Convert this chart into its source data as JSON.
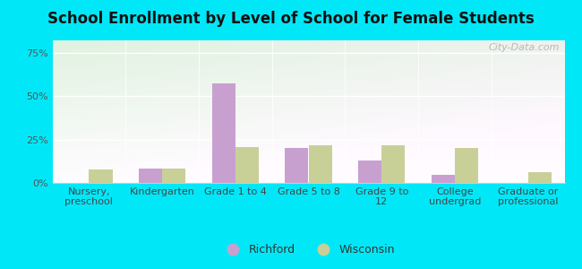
{
  "title": "School Enrollment by Level of School for Female Students",
  "categories": [
    "Nursery,\npreschool",
    "Kindergarten",
    "Grade 1 to 4",
    "Grade 5 to 8",
    "Grade 9 to\n12",
    "College\nundergrad",
    "Graduate or\nprofessional"
  ],
  "richford": [
    0.0,
    8.5,
    57.0,
    20.0,
    13.0,
    4.5,
    0.0
  ],
  "wisconsin": [
    7.5,
    8.0,
    20.5,
    21.5,
    21.5,
    20.0,
    6.0
  ],
  "richford_color": "#c8a0d0",
  "wisconsin_color": "#c8d098",
  "outer_bg": "#00e8f8",
  "plot_bg_colors": [
    "#ddeedd",
    "#f5fff8"
  ],
  "watermark": "City-Data.com",
  "legend_richford": "Richford",
  "legend_wisconsin": "Wisconsin",
  "bar_width": 0.32,
  "yticks": [
    0,
    25,
    50,
    75
  ],
  "ylim": [
    0,
    82
  ],
  "title_fontsize": 12,
  "tick_fontsize": 8
}
